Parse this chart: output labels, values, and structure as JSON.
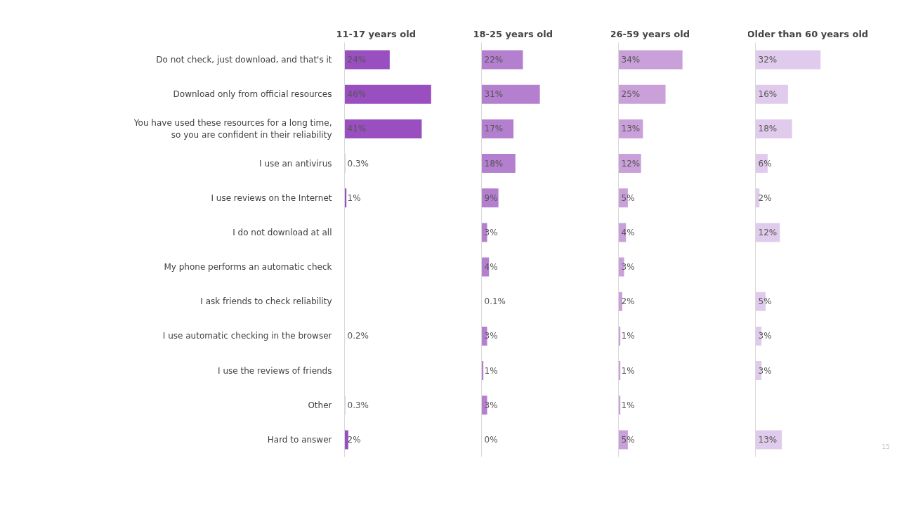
{
  "chart_data": [
    {
      "type": "bar",
      "orientation": "horizontal",
      "title": "11-17 years old",
      "categories": [
        "Do not check, just download, and that's it",
        "Download only from official resources",
        "You have used these resources for a long time,\nso you are confident in their reliability",
        "I use an antivirus",
        "I use reviews on the Internet",
        "I do not download at all",
        "My phone performs an automatic check",
        "I ask friends to check reliability",
        "I use automatic checking in the browser",
        "I use the reviews of friends",
        "Other",
        "Hard to answer"
      ],
      "color": "#9a4fc0",
      "values": [
        24,
        46,
        41,
        0.3,
        1,
        null,
        null,
        null,
        0.2,
        null,
        0.3,
        2
      ],
      "value_labels": [
        "24%",
        "46%",
        "41%",
        "0.3%",
        "1%",
        null,
        null,
        null,
        "0.2%",
        null,
        "0.3%",
        "2%"
      ]
    },
    {
      "type": "bar",
      "orientation": "horizontal",
      "title": "18-25 years old",
      "color": "#b57fd0",
      "values": [
        22,
        31,
        17,
        18,
        9,
        3,
        4,
        0.1,
        3,
        1,
        3,
        0
      ],
      "value_labels": [
        "22%",
        "31%",
        "17%",
        "18%",
        "9%",
        "3%",
        "4%",
        "0.1%",
        "3%",
        "1%",
        "3%",
        "0%"
      ]
    },
    {
      "type": "bar",
      "orientation": "horizontal",
      "title": "26-59 years old",
      "color": "#c9a0d9",
      "values": [
        34,
        25,
        13,
        12,
        5,
        4,
        3,
        2,
        1,
        1,
        1,
        5
      ],
      "value_labels": [
        "34%",
        "25%",
        "13%",
        "12%",
        "5%",
        "4%",
        "3%",
        "2%",
        "1%",
        "1%",
        "1%",
        "5%"
      ]
    },
    {
      "type": "bar",
      "orientation": "horizontal",
      "title": "Older than 60 years old",
      "color": "#e0cbec",
      "values": [
        32,
        16,
        18,
        6,
        2,
        12,
        null,
        5,
        3,
        3,
        null,
        13
      ],
      "value_labels": [
        "32%",
        "16%",
        "18%",
        "6%",
        "2%",
        "12%",
        null,
        "5%",
        "3%",
        "3%",
        null,
        "13%"
      ],
      "annotations": [
        "15"
      ]
    }
  ]
}
